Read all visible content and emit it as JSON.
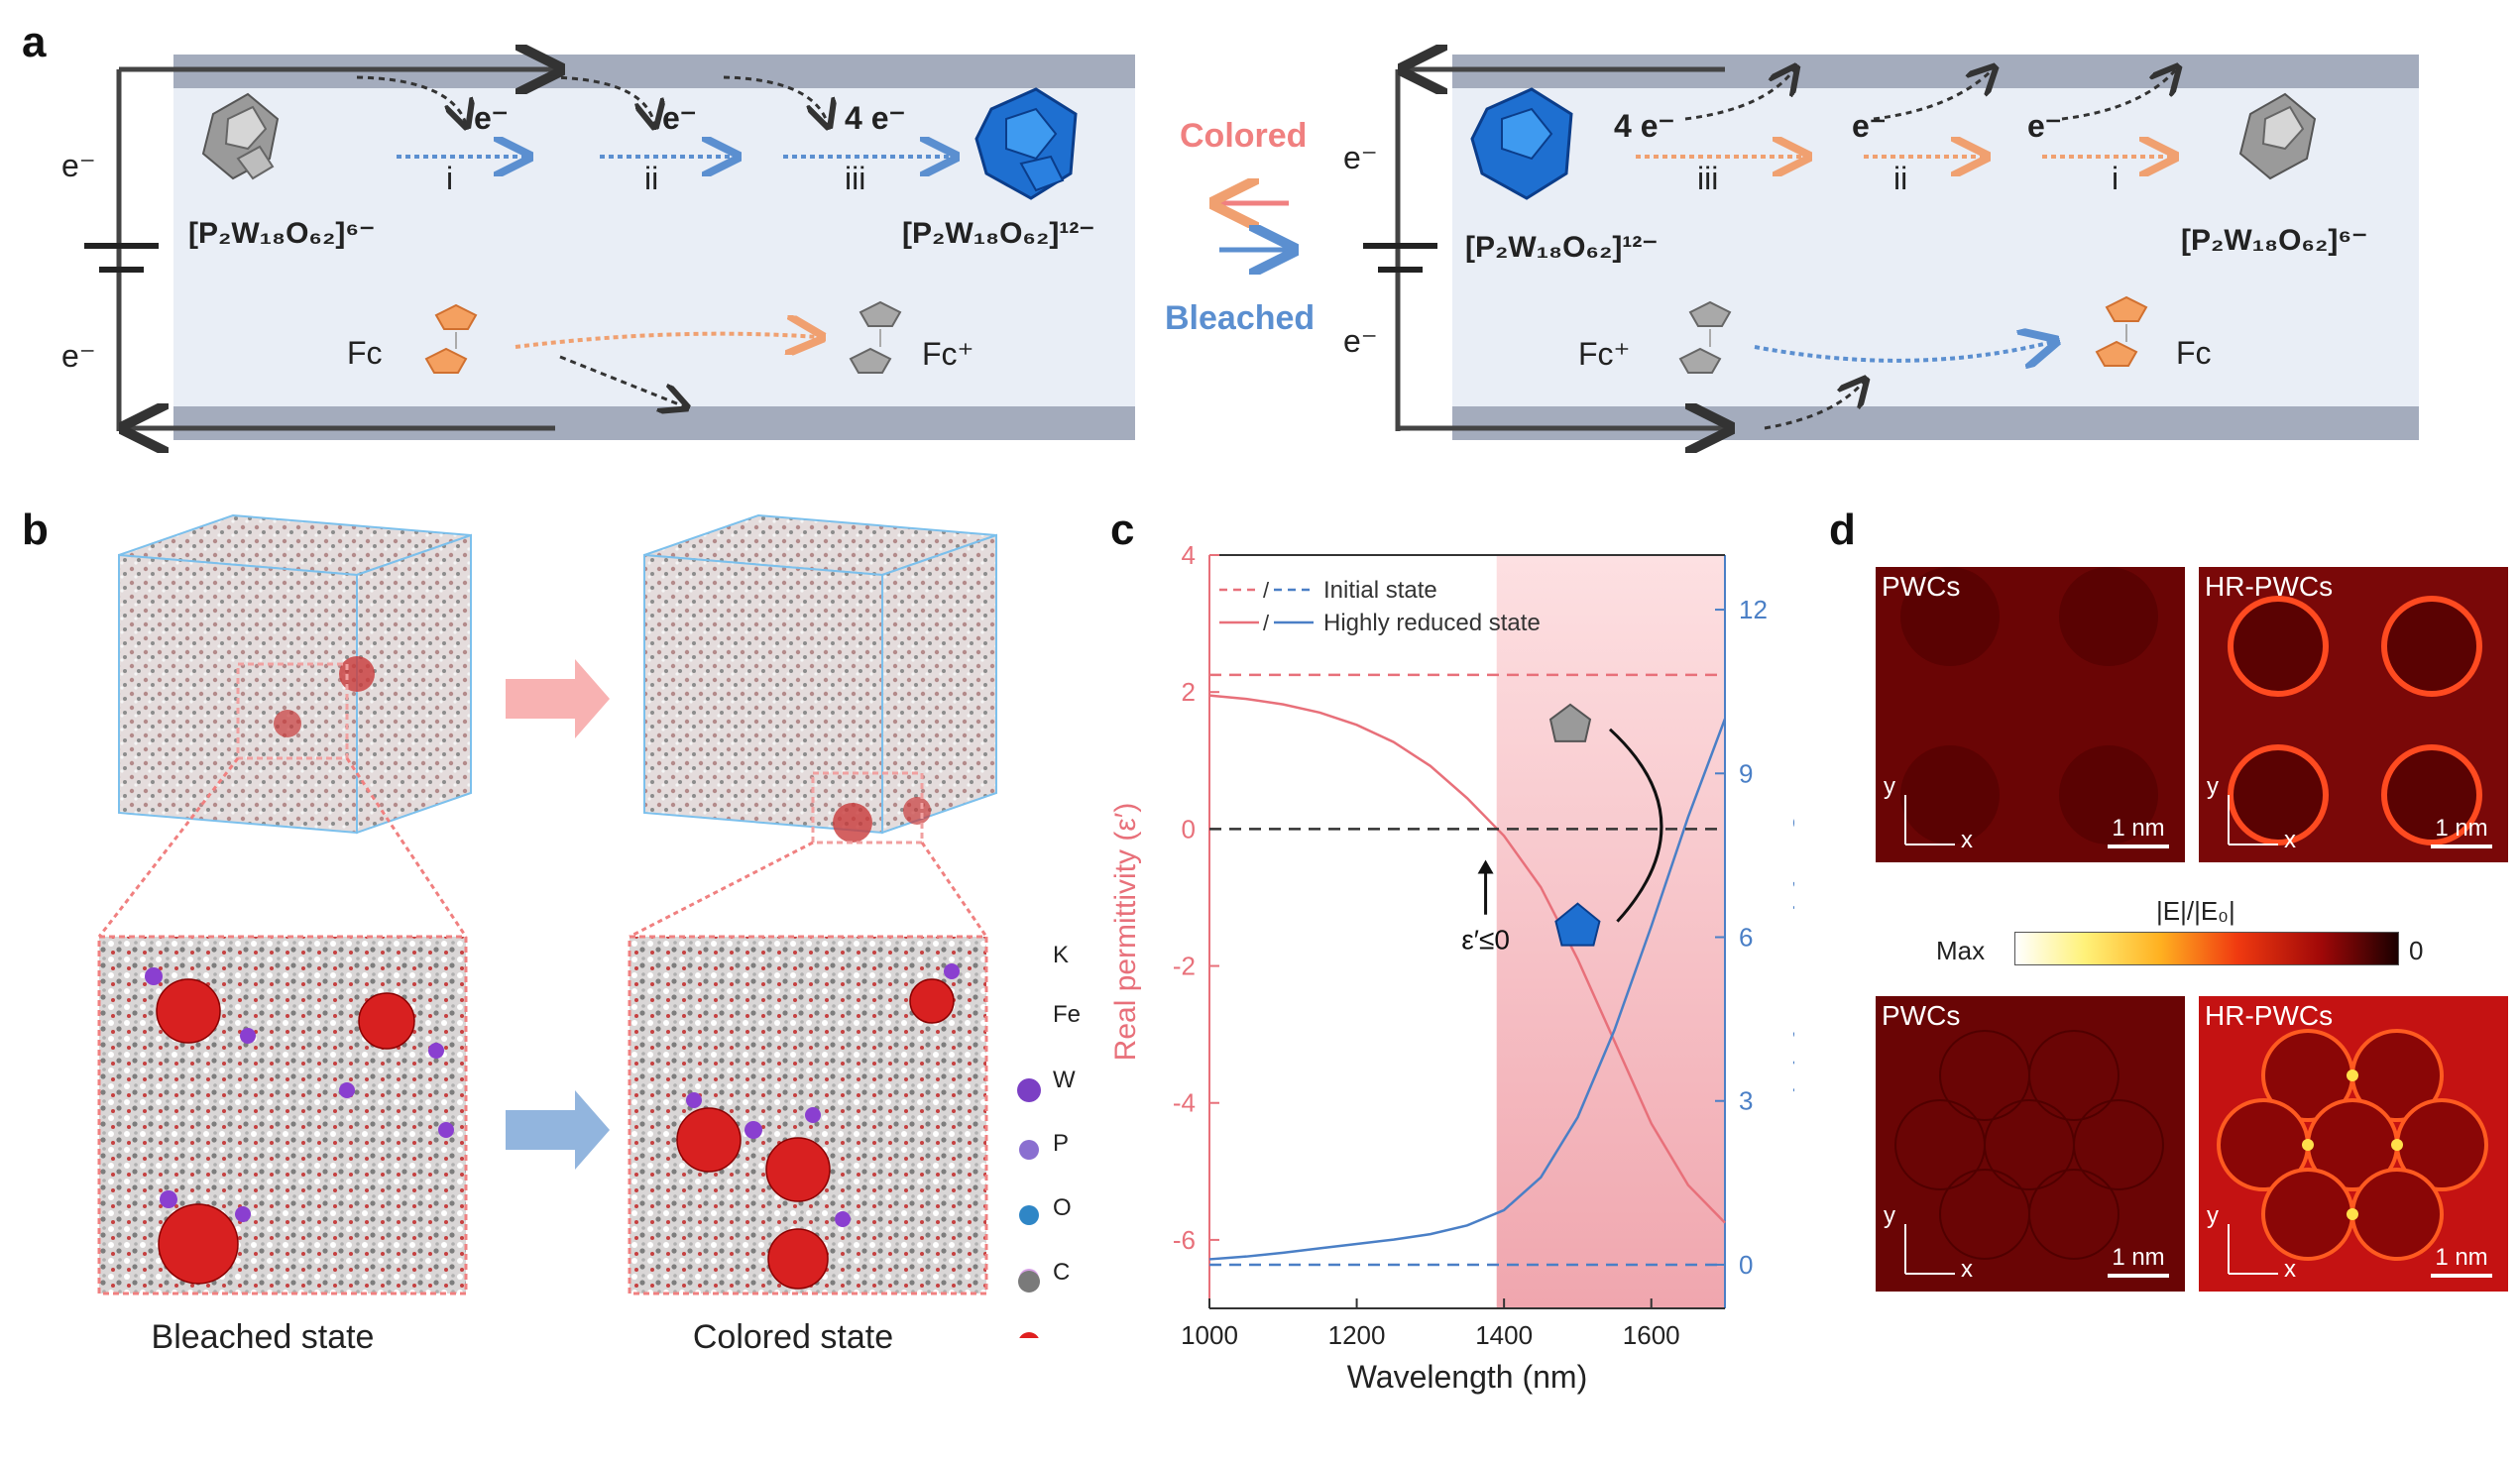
{
  "panels": {
    "a": "a",
    "b": "b",
    "c": "c",
    "d": "d"
  },
  "panel_a": {
    "electron": "e⁻",
    "left": {
      "polyoxo_ox": "[P₂W₁₈O₆₂]⁶⁻",
      "polyoxo_red": "[P₂W₁₈O₆₂]¹²⁻",
      "steps": [
        {
          "e": "e⁻",
          "roman": "i"
        },
        {
          "e": "e⁻",
          "roman": "ii"
        },
        {
          "e": "4 e⁻",
          "roman": "iii"
        }
      ],
      "fc": "Fc",
      "fc_plus": "Fc⁺"
    },
    "middle": {
      "colored": "Colored",
      "bleached": "Bleached",
      "colored_color": "#f08080",
      "bleached_color": "#5b8fd0"
    },
    "right": {
      "polyoxo_red": "[P₂W₁₈O₆₂]¹²⁻",
      "polyoxo_ox": "[P₂W₁₈O₆₂]⁶⁻",
      "steps": [
        {
          "e": "4 e⁻",
          "roman": "iii"
        },
        {
          "e": "e⁻",
          "roman": "ii"
        },
        {
          "e": "e⁻",
          "roman": "i"
        }
      ],
      "fc_plus": "Fc⁺",
      "fc": "Fc"
    }
  },
  "panel_b": {
    "captions": {
      "bleached": "Bleached state",
      "colored": "Colored state"
    },
    "legend": [
      {
        "label": "K",
        "color": "#7b3fc4"
      },
      {
        "label": "Fe",
        "color": "#8a6fd0"
      },
      {
        "label": "W",
        "color": "#2f86c6"
      },
      {
        "label": "P",
        "color": "#d7a0e6"
      },
      {
        "label": "O",
        "color": "#e02020"
      },
      {
        "label": "C",
        "color": "#7a7a7a"
      }
    ]
  },
  "chart_data": {
    "type": "line",
    "xlabel": "Wavelength (nm)",
    "ylabel_left": "Real permittivity (ε′)",
    "ylabel_right": "Imaginary permittivity (ε″)",
    "xlim": [
      1000,
      1700
    ],
    "ylim_left": [
      -7,
      4
    ],
    "ylim_right": [
      -0.8,
      13
    ],
    "x_ticks": [
      "1000",
      "1200",
      "1400",
      "1600"
    ],
    "y_ticks_left": [
      "4",
      "2",
      "0",
      "-2",
      "-4",
      "-6"
    ],
    "y_ticks_right": [
      "0",
      "3",
      "6",
      "9",
      "12"
    ],
    "legend": [
      {
        "marker": "/",
        "label": "Initial state"
      },
      {
        "marker": "/",
        "label": "Highly reduced state"
      }
    ],
    "annotation": "ε′≤0",
    "shaded_region": [
      1390,
      1700
    ],
    "series": [
      {
        "name": "Initial state",
        "axis": "left",
        "style": "dashed",
        "color": "#e8707a",
        "x": [
          1000,
          1700
        ],
        "y": [
          2.25,
          2.25
        ]
      },
      {
        "name": "Initial state",
        "axis": "right",
        "style": "dashed",
        "color": "#4a7fc6",
        "x": [
          1000,
          1700
        ],
        "y": [
          0,
          0
        ]
      },
      {
        "name": "Highly reduced state",
        "axis": "left",
        "style": "solid",
        "color": "#e8707a",
        "x": [
          1000,
          1050,
          1100,
          1150,
          1200,
          1250,
          1300,
          1350,
          1400,
          1450,
          1500,
          1550,
          1600,
          1650,
          1700
        ],
        "y": [
          1.95,
          1.9,
          1.82,
          1.7,
          1.52,
          1.27,
          0.92,
          0.45,
          -0.1,
          -0.85,
          -1.9,
          -3.1,
          -4.3,
          -5.2,
          -5.75
        ]
      },
      {
        "name": "Highly reduced state",
        "axis": "right",
        "style": "solid",
        "color": "#4a7fc6",
        "x": [
          1000,
          1050,
          1100,
          1150,
          1200,
          1250,
          1300,
          1350,
          1400,
          1450,
          1500,
          1550,
          1600,
          1650,
          1700
        ],
        "y": [
          0.1,
          0.15,
          0.22,
          0.3,
          0.38,
          0.46,
          0.56,
          0.72,
          1.0,
          1.6,
          2.7,
          4.3,
          6.2,
          8.2,
          10.0
        ]
      },
      {
        "name": "",
        "axis": "left",
        "style": "dashed",
        "color": "#333333",
        "x": [
          1000,
          1700
        ],
        "y": [
          0,
          0
        ]
      }
    ]
  },
  "panel_d": {
    "top_left": {
      "title": "PWCs",
      "y": "y",
      "x": "x",
      "scale": "1 nm"
    },
    "top_right": {
      "title": "HR-PWCs",
      "y": "y",
      "x": "x",
      "scale": "1 nm"
    },
    "bottom_left": {
      "title": "PWCs",
      "y": "y",
      "x": "x",
      "scale": "1 nm"
    },
    "bottom_right": {
      "title": "HR-PWCs",
      "y": "y",
      "x": "x",
      "scale": "1 nm"
    },
    "colorbar": {
      "title": "|E|/|E₀|",
      "max": "Max",
      "min": "0"
    }
  }
}
